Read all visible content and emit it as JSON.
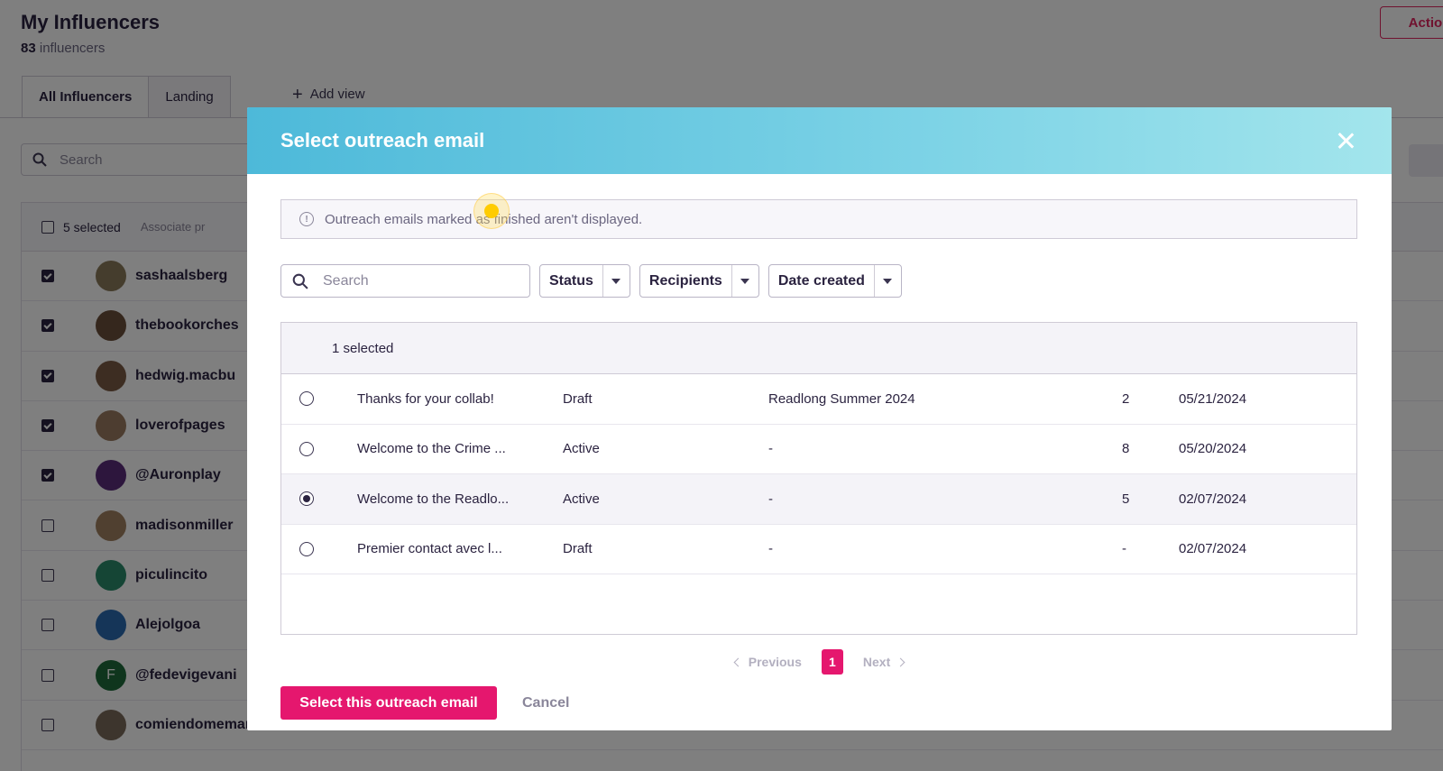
{
  "page": {
    "title": "My Influencers",
    "count": "83",
    "count_label": "influencers",
    "action_label": "Action"
  },
  "tabs": [
    {
      "label": "All Influencers",
      "active": true
    },
    {
      "label": "Landing",
      "active": false
    }
  ],
  "add_view_label": "Add view",
  "bg_search": {
    "placeholder": "Search"
  },
  "bg_table": {
    "selected_label": "5 selected",
    "associate_label": "Associate pr",
    "rows": [
      {
        "name": "sashaalsberg",
        "checked": true,
        "avatar_color": "#8a7a5a"
      },
      {
        "name": "thebookorches",
        "checked": true,
        "avatar_color": "#6b4e3a"
      },
      {
        "name": "hedwig.macbu",
        "checked": true,
        "avatar_color": "#7a5a44"
      },
      {
        "name": "loverofpages",
        "checked": true,
        "avatar_color": "#9a7a60"
      },
      {
        "name": "@Auronplay",
        "checked": true,
        "avatar_color": "#5a2d7a"
      },
      {
        "name": "madisonmiller",
        "checked": false,
        "avatar_color": "#a08060"
      },
      {
        "name": "piculincito",
        "checked": false,
        "avatar_color": "#2a8a6a"
      },
      {
        "name": "Alejolgoa",
        "checked": false,
        "avatar_color": "#2a6ab0"
      },
      {
        "name": "@fedevigevani",
        "checked": false,
        "avatar_color": "#1f6b3a",
        "initial": "F"
      },
      {
        "name": "comiendomemaria",
        "checked": false,
        "avatar_color": "#7a6a5a"
      }
    ]
  },
  "modal": {
    "title": "Select outreach email",
    "notice": "Outreach emails marked as finished aren't displayed.",
    "search_placeholder": "Search",
    "filters": [
      "Status",
      "Recipients",
      "Date created"
    ],
    "selected_label": "1 selected",
    "rows": [
      {
        "name": "Thanks for your collab!",
        "status": "Draft",
        "campaign": "Readlong Summer 2024",
        "recipients": "2",
        "date": "05/21/2024",
        "selected": false
      },
      {
        "name": "Welcome to the Crime ...",
        "status": "Active",
        "campaign": "-",
        "recipients": "8",
        "date": "05/20/2024",
        "selected": false
      },
      {
        "name": "Welcome to the Readlo...",
        "status": "Active",
        "campaign": "-",
        "recipients": "5",
        "date": "02/07/2024",
        "selected": true
      },
      {
        "name": "Premier contact avec l...",
        "status": "Draft",
        "campaign": "-",
        "recipients": "-",
        "date": "02/07/2024",
        "selected": false
      }
    ],
    "pagination": {
      "previous": "Previous",
      "current": "1",
      "next": "Next"
    },
    "primary_button": "Select this outreach email",
    "cancel_button": "Cancel"
  },
  "colors": {
    "accent": "#e5176e",
    "header_gradient_start": "#4db9d9",
    "header_gradient_end": "#a3e5ec",
    "text_dark": "#2b2340"
  }
}
